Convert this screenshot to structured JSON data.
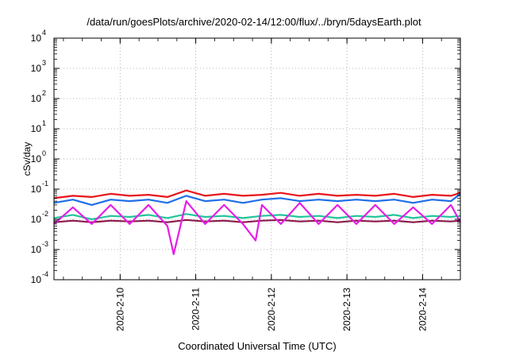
{
  "chart_data": {
    "type": "line",
    "title": "/data/run/goesPlots/archive/2020-02-14/12:00/flux/../bryn/5daysEarth.plot",
    "xlabel": "Coordinated Universal Time (UTC)",
    "ylabel": "cSv/day",
    "yscale": "log",
    "ylim": [
      0.0001,
      10000
    ],
    "xlim": [
      "2020-02-09T03:00",
      "2020-02-14T12:00"
    ],
    "grid": true,
    "x_ticks": [
      {
        "label": "2020-2-10",
        "date": "2020-02-10"
      },
      {
        "label": "2020-2-11",
        "date": "2020-02-11"
      },
      {
        "label": "2020-2-12",
        "date": "2020-02-12"
      },
      {
        "label": "2020-2-13",
        "date": "2020-02-13"
      },
      {
        "label": "2020-2-14",
        "date": "2020-02-14"
      }
    ],
    "y_ticks": [
      {
        "base": "10",
        "exp": "-4"
      },
      {
        "base": "10",
        "exp": "-3"
      },
      {
        "base": "10",
        "exp": "-2"
      },
      {
        "base": "10",
        "exp": "-1"
      },
      {
        "base": "10",
        "exp": "0"
      },
      {
        "base": "10",
        "exp": "1"
      },
      {
        "base": "10",
        "exp": "2"
      },
      {
        "base": "10",
        "exp": "3"
      },
      {
        "base": "10",
        "exp": "4"
      }
    ],
    "series": [
      {
        "color": "#e8161c",
        "x": [
          "2020-02-09T03:00",
          "2020-02-09T09:00",
          "2020-02-09T15:00",
          "2020-02-09T21:00",
          "2020-02-10T03:00",
          "2020-02-10T09:00",
          "2020-02-10T15:00",
          "2020-02-10T21:00",
          "2020-02-11T03:00",
          "2020-02-11T09:00",
          "2020-02-11T15:00",
          "2020-02-11T21:00",
          "2020-02-12T03:00",
          "2020-02-12T09:00",
          "2020-02-12T15:00",
          "2020-02-12T21:00",
          "2020-02-13T03:00",
          "2020-02-13T09:00",
          "2020-02-13T15:00",
          "2020-02-13T21:00",
          "2020-02-14T03:00",
          "2020-02-14T09:00",
          "2020-02-14T12:00"
        ],
        "y": [
          0.05,
          0.06,
          0.055,
          0.07,
          0.06,
          0.065,
          0.055,
          0.09,
          0.06,
          0.07,
          0.06,
          0.065,
          0.075,
          0.06,
          0.07,
          0.06,
          0.065,
          0.06,
          0.07,
          0.055,
          0.065,
          0.06,
          0.075
        ]
      },
      {
        "color": "#1f6fe8",
        "x": [
          "2020-02-09T03:00",
          "2020-02-09T09:00",
          "2020-02-09T15:00",
          "2020-02-09T21:00",
          "2020-02-10T03:00",
          "2020-02-10T09:00",
          "2020-02-10T15:00",
          "2020-02-10T21:00",
          "2020-02-11T03:00",
          "2020-02-11T09:00",
          "2020-02-11T15:00",
          "2020-02-11T21:00",
          "2020-02-12T03:00",
          "2020-02-12T09:00",
          "2020-02-12T15:00",
          "2020-02-12T21:00",
          "2020-02-13T03:00",
          "2020-02-13T09:00",
          "2020-02-13T15:00",
          "2020-02-13T21:00",
          "2020-02-14T03:00",
          "2020-02-14T09:00",
          "2020-02-14T12:00"
        ],
        "y": [
          0.035,
          0.045,
          0.03,
          0.045,
          0.04,
          0.045,
          0.035,
          0.06,
          0.04,
          0.045,
          0.035,
          0.045,
          0.05,
          0.04,
          0.045,
          0.04,
          0.045,
          0.04,
          0.045,
          0.035,
          0.045,
          0.04,
          0.07
        ]
      },
      {
        "color": "#22c59a",
        "x": [
          "2020-02-09T03:00",
          "2020-02-09T09:00",
          "2020-02-09T15:00",
          "2020-02-09T21:00",
          "2020-02-10T03:00",
          "2020-02-10T09:00",
          "2020-02-10T15:00",
          "2020-02-10T21:00",
          "2020-02-11T03:00",
          "2020-02-11T09:00",
          "2020-02-11T15:00",
          "2020-02-11T21:00",
          "2020-02-12T03:00",
          "2020-02-12T09:00",
          "2020-02-12T15:00",
          "2020-02-12T21:00",
          "2020-02-13T03:00",
          "2020-02-13T09:00",
          "2020-02-13T15:00",
          "2020-02-13T21:00",
          "2020-02-14T03:00",
          "2020-02-14T09:00",
          "2020-02-14T12:00"
        ],
        "y": [
          0.011,
          0.014,
          0.01,
          0.013,
          0.012,
          0.014,
          0.011,
          0.015,
          0.012,
          0.013,
          0.011,
          0.013,
          0.014,
          0.012,
          0.013,
          0.011,
          0.013,
          0.012,
          0.014,
          0.011,
          0.013,
          0.012,
          0.013
        ]
      },
      {
        "color": "#8b1a4a",
        "x": [
          "2020-02-09T03:00",
          "2020-02-09T09:00",
          "2020-02-09T15:00",
          "2020-02-09T21:00",
          "2020-02-10T03:00",
          "2020-02-10T09:00",
          "2020-02-10T15:00",
          "2020-02-10T21:00",
          "2020-02-11T03:00",
          "2020-02-11T09:00",
          "2020-02-11T15:00",
          "2020-02-11T21:00",
          "2020-02-12T03:00",
          "2020-02-12T09:00",
          "2020-02-12T15:00",
          "2020-02-12T21:00",
          "2020-02-13T03:00",
          "2020-02-13T09:00",
          "2020-02-13T15:00",
          "2020-02-13T21:00",
          "2020-02-14T03:00",
          "2020-02-14T09:00",
          "2020-02-14T12:00"
        ],
        "y": [
          0.008,
          0.009,
          0.008,
          0.009,
          0.0085,
          0.009,
          0.008,
          0.0095,
          0.0085,
          0.009,
          0.008,
          0.009,
          0.0095,
          0.0085,
          0.009,
          0.008,
          0.009,
          0.0085,
          0.009,
          0.008,
          0.009,
          0.0085,
          0.009
        ]
      },
      {
        "color": "#e61de6",
        "x": [
          "2020-02-09T03:00",
          "2020-02-09T09:00",
          "2020-02-09T15:00",
          "2020-02-09T21:00",
          "2020-02-10T03:00",
          "2020-02-10T09:00",
          "2020-02-10T15:00",
          "2020-02-10T17:00",
          "2020-02-10T21:00",
          "2020-02-11T03:00",
          "2020-02-11T09:00",
          "2020-02-11T15:00",
          "2020-02-11T19:00",
          "2020-02-11T21:00",
          "2020-02-12T03:00",
          "2020-02-12T09:00",
          "2020-02-12T15:00",
          "2020-02-12T21:00",
          "2020-02-13T03:00",
          "2020-02-13T09:00",
          "2020-02-13T15:00",
          "2020-02-13T21:00",
          "2020-02-14T03:00",
          "2020-02-14T09:00",
          "2020-02-14T12:00"
        ],
        "y": [
          0.007,
          0.025,
          0.007,
          0.03,
          0.007,
          0.03,
          0.006,
          0.0007,
          0.04,
          0.007,
          0.03,
          0.007,
          0.002,
          0.03,
          0.007,
          0.035,
          0.007,
          0.03,
          0.007,
          0.03,
          0.007,
          0.025,
          0.007,
          0.03,
          0.008
        ]
      }
    ]
  }
}
